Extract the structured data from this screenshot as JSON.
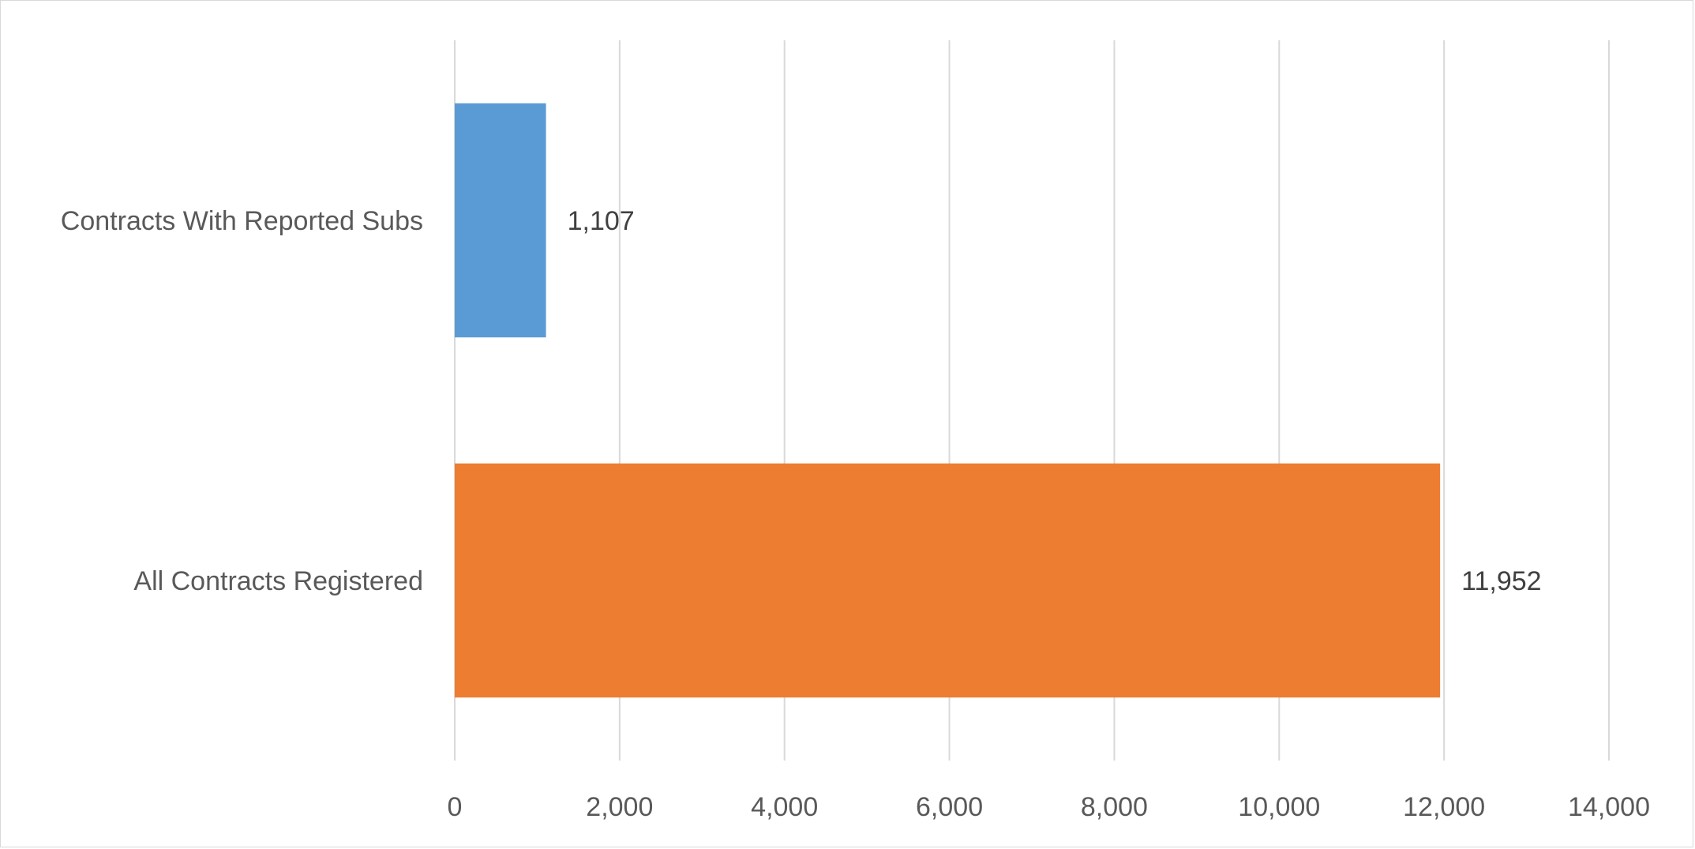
{
  "chart_data": {
    "type": "bar",
    "orientation": "horizontal",
    "categories": [
      "Contracts With Reported Subs",
      "All Contracts Registered"
    ],
    "values": [
      1107,
      11952
    ],
    "data_labels": [
      "1,107",
      "11,952"
    ],
    "colors": [
      "#5b9bd5",
      "#ed7d31"
    ],
    "xlim": [
      0,
      14000
    ],
    "x_ticks": [
      0,
      2000,
      4000,
      6000,
      8000,
      10000,
      12000,
      14000
    ],
    "x_tick_labels": [
      "0",
      "2,000",
      "4,000",
      "6,000",
      "8,000",
      "10,000",
      "12,000",
      "14,000"
    ],
    "grid": "vertical",
    "legend": "none",
    "title": "",
    "xlabel": "",
    "ylabel": ""
  }
}
